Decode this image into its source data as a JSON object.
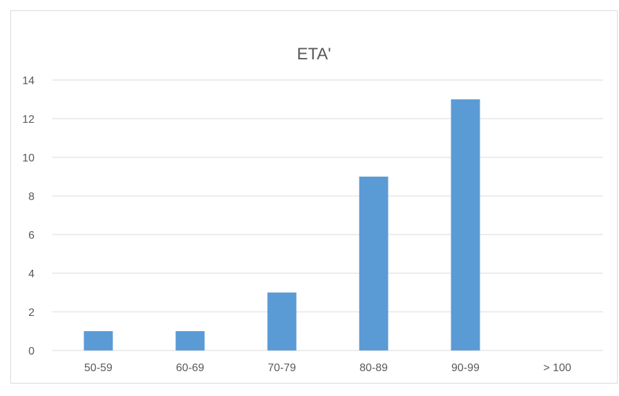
{
  "chart_data": {
    "type": "bar",
    "title": "ETA'",
    "xlabel": "",
    "ylabel": "",
    "categories": [
      "50-59",
      "60-69",
      "70-79",
      "80-89",
      "90-99",
      "> 100"
    ],
    "values": [
      1,
      1,
      3,
      9,
      13,
      0
    ],
    "ylim": [
      0,
      14
    ],
    "yticks": [
      0,
      2,
      4,
      6,
      8,
      10,
      12,
      14
    ],
    "grid": true,
    "legend": "none",
    "colors": {
      "bar": "#5b9bd5",
      "grid": "#d9d9d9",
      "text": "#595959",
      "border": "#d9d9d9"
    }
  }
}
